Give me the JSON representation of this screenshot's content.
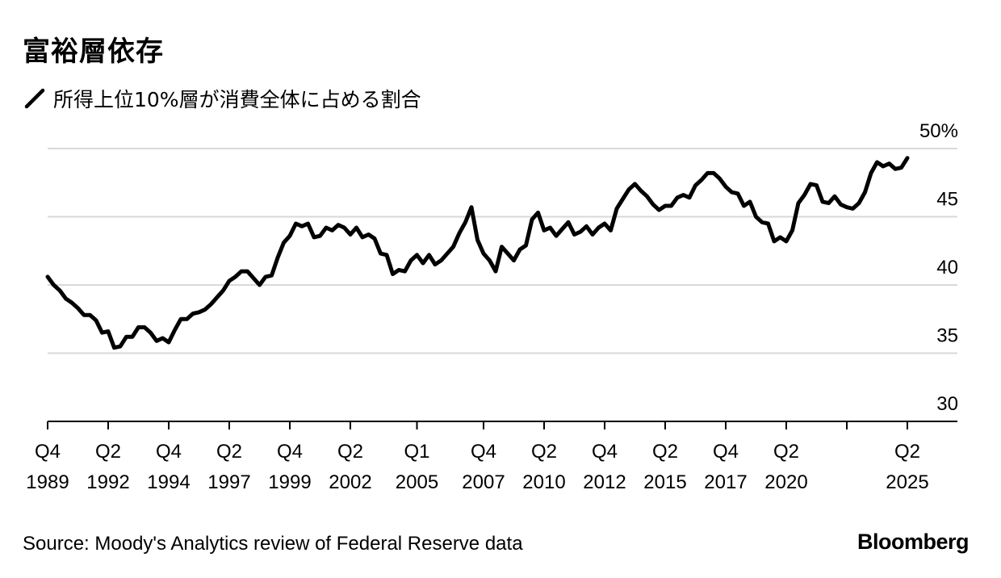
{
  "title": "富裕層依存",
  "legend": {
    "label": "所得上位10%層が消費全体に占める割合",
    "color": "#000000"
  },
  "source": "Source: Moody's Analytics review of Federal Reserve data",
  "brand": "Bloomberg",
  "colors": {
    "line": "#000000",
    "grid": "#d9d9d9",
    "axis": "#000000",
    "text": "#000000"
  },
  "chart_data": {
    "type": "line",
    "title": "富裕層依存",
    "subtitle": "所得上位10%層が消費全体に占める割合",
    "xlabel": "",
    "ylabel": "",
    "ylim": [
      30,
      50
    ],
    "yticks": [
      50,
      45,
      40,
      35,
      30
    ],
    "ytick_labels": [
      "50%",
      "45",
      "40",
      "35",
      "30"
    ],
    "grid": true,
    "xstart": 1989.875,
    "xend": 2025.375,
    "xticks": [
      {
        "x": 1989.875,
        "q": "Q4",
        "y": "1989"
      },
      {
        "x": 1992.375,
        "q": "Q2",
        "y": "1992"
      },
      {
        "x": 1994.875,
        "q": "Q4",
        "y": "1994"
      },
      {
        "x": 1997.375,
        "q": "Q2",
        "y": "1997"
      },
      {
        "x": 1999.875,
        "q": "Q4",
        "y": "1999"
      },
      {
        "x": 2002.375,
        "q": "Q2",
        "y": "2002"
      },
      {
        "x": 2005.125,
        "q": "Q1",
        "y": "2005"
      },
      {
        "x": 2007.875,
        "q": "Q4",
        "y": "2007"
      },
      {
        "x": 2010.375,
        "q": "Q2",
        "y": "2010"
      },
      {
        "x": 2012.875,
        "q": "Q4",
        "y": "2012"
      },
      {
        "x": 2015.375,
        "q": "Q2",
        "y": "2015"
      },
      {
        "x": 2017.875,
        "q": "Q4",
        "y": "2017"
      },
      {
        "x": 2020.375,
        "q": "Q2",
        "y": "2020"
      },
      {
        "x": 2025.375,
        "q": "Q2",
        "y": "2025"
      }
    ],
    "extra_ticks": [
      2022.875
    ],
    "series": [
      {
        "name": "所得上位10%層が消費全体に占める割合",
        "frequency": "quarterly",
        "start": 1989.875,
        "values": [
          40.6,
          40.0,
          39.6,
          39.0,
          38.7,
          38.3,
          37.8,
          37.8,
          37.4,
          36.5,
          36.6,
          35.4,
          35.5,
          36.2,
          36.2,
          36.9,
          36.9,
          36.5,
          35.9,
          36.1,
          35.8,
          36.7,
          37.5,
          37.5,
          37.9,
          38.0,
          38.2,
          38.6,
          39.1,
          39.6,
          40.3,
          40.6,
          41.0,
          41.0,
          40.5,
          40.0,
          40.6,
          40.7,
          42.0,
          43.1,
          43.6,
          44.5,
          44.3,
          44.5,
          43.5,
          43.6,
          44.2,
          44.0,
          44.4,
          44.2,
          43.7,
          44.2,
          43.5,
          43.7,
          43.4,
          42.3,
          42.2,
          40.8,
          41.1,
          41.0,
          41.8,
          42.2,
          41.6,
          42.2,
          41.5,
          41.8,
          42.3,
          42.8,
          43.8,
          44.6,
          45.7,
          43.3,
          42.3,
          41.8,
          41.0,
          42.8,
          42.3,
          41.8,
          42.6,
          42.9,
          44.8,
          45.3,
          44.0,
          44.2,
          43.6,
          44.1,
          44.6,
          43.7,
          43.9,
          44.3,
          43.7,
          44.2,
          44.5,
          44.0,
          45.6,
          46.3,
          47.0,
          47.4,
          46.9,
          46.5,
          45.9,
          45.5,
          45.8,
          45.8,
          46.4,
          46.6,
          46.4,
          47.3,
          47.7,
          48.2,
          48.2,
          47.8,
          47.2,
          46.8,
          46.7,
          45.8,
          46.1,
          45.0,
          44.6,
          44.5,
          43.2,
          43.5,
          43.2,
          44.0,
          46.0,
          46.6,
          47.4,
          47.3,
          46.1,
          46.0,
          46.5,
          45.9,
          45.7,
          45.6,
          46.0,
          46.8,
          48.2,
          49.0,
          48.7,
          48.9,
          48.5,
          48.6,
          49.3
        ]
      }
    ]
  }
}
